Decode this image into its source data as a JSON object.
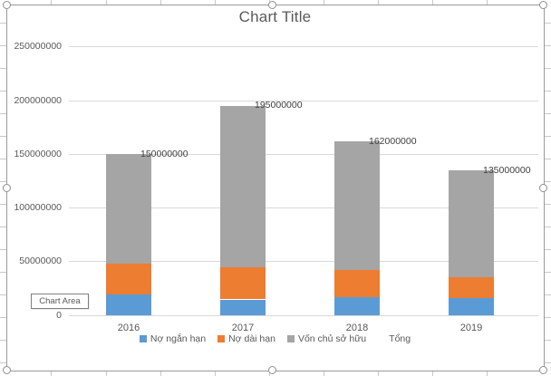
{
  "chart_area_tooltip": {
    "label": "Chart Area"
  },
  "chart_data": {
    "type": "bar",
    "stacked": true,
    "title": "Chart Title",
    "categories": [
      "2016",
      "2017",
      "2018",
      "2019"
    ],
    "series": [
      {
        "name": "Nợ ngắn hạn",
        "color": "#5B9BD5",
        "values": [
          20000000,
          15000000,
          17000000,
          16000000
        ]
      },
      {
        "name": "Nợ dài hạn",
        "color": "#ED7D31",
        "values": [
          28000000,
          30000000,
          25000000,
          20000000
        ]
      },
      {
        "name": "Vốn chủ sở hữu",
        "color": "#A5A5A5",
        "values": [
          102000000,
          150000000,
          120000000,
          99000000
        ]
      }
    ],
    "totals": {
      "name": "Tổng",
      "values": [
        150000000,
        195000000,
        162000000,
        135000000
      ],
      "labels": [
        "150000000",
        "195000000",
        "162000000",
        "135000000"
      ]
    },
    "y_axis": {
      "min": 0,
      "max": 250000000,
      "step": 50000000,
      "tick_labels": [
        "0",
        "50000000",
        "100000000",
        "150000000",
        "200000000",
        "250000000"
      ]
    },
    "legend_items": [
      {
        "label": "Nợ ngắn hạn",
        "color": "#5B9BD5"
      },
      {
        "label": "Nợ dài hạn",
        "color": "#ED7D31"
      },
      {
        "label": "Vốn chủ sở hữu",
        "color": "#A5A5A5"
      },
      {
        "label": "Tổng",
        "color": null
      }
    ],
    "legend_position": "bottom",
    "grid": true
  },
  "colors": {
    "gridline": "#D9D9D9",
    "axis_text": "#595959",
    "title_text": "#595959",
    "data_label_text": "#404040",
    "selection_border": "#9A9A9A",
    "worksheet_tick": "#C9C9C9"
  }
}
